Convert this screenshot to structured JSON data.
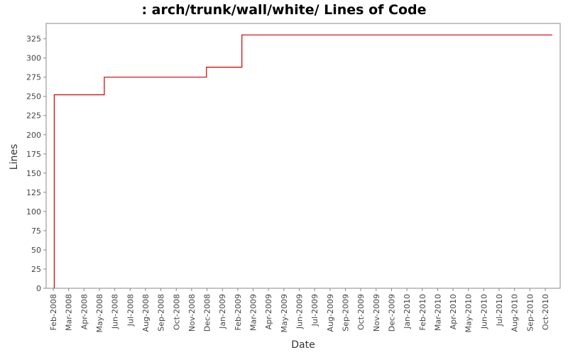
{
  "chart_data": {
    "type": "line",
    "step": true,
    "title": ": arch/trunk/wall/white/ Lines of Code",
    "xlabel": "Date",
    "ylabel": "Lines",
    "x_ticks": [
      "Feb-2008",
      "Mar-2008",
      "Apr-2008",
      "May-2008",
      "Jun-2008",
      "Jul-2008",
      "Aug-2008",
      "Sep-2008",
      "Oct-2008",
      "Nov-2008",
      "Dec-2008",
      "Jan-2009",
      "Feb-2009",
      "Mar-2009",
      "Apr-2009",
      "May-2009",
      "Jun-2009",
      "Jul-2009",
      "Aug-2009",
      "Sep-2009",
      "Oct-2009",
      "Nov-2009",
      "Dec-2009",
      "Jan-2010",
      "Feb-2010",
      "Mar-2010",
      "Apr-2010",
      "May-2010",
      "Jun-2010",
      "Jul-2010",
      "Aug-2010",
      "Sep-2010",
      "Oct-2010"
    ],
    "y_ticks": [
      0,
      25,
      50,
      75,
      100,
      125,
      150,
      175,
      200,
      225,
      250,
      275,
      300,
      325
    ],
    "ylim": [
      0,
      345
    ],
    "series": [
      {
        "color": "#cc0000",
        "points": [
          {
            "x": "2008-02-03",
            "y": 0
          },
          {
            "x": "2008-02-03",
            "y": 252
          },
          {
            "x": "2008-05-12",
            "y": 252
          },
          {
            "x": "2008-05-12",
            "y": 275
          },
          {
            "x": "2008-11-30",
            "y": 275
          },
          {
            "x": "2008-11-30",
            "y": 288
          },
          {
            "x": "2009-02-08",
            "y": 288
          },
          {
            "x": "2009-02-08",
            "y": 330
          },
          {
            "x": "2010-10-15",
            "y": 330
          }
        ]
      }
    ],
    "grid": false
  }
}
